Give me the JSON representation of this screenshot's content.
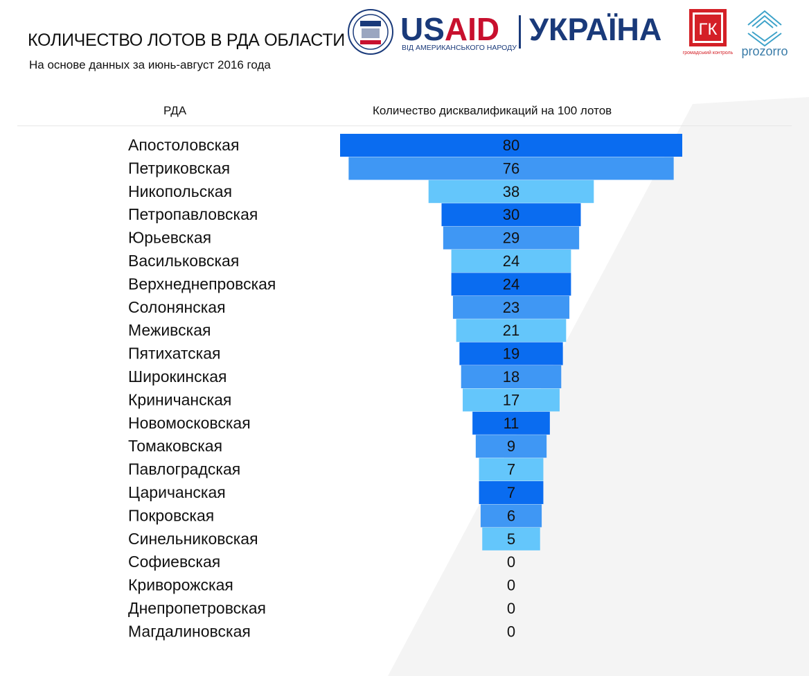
{
  "header": {
    "title": "КОЛИЧЕСТВО ЛОТОВ В РДА ОБЛАСТИ",
    "subtitle": "На основе данных за июнь-август 2016 года",
    "col_rda": "РДА",
    "col_value": "Количество дисквалификаций на 100 лотов"
  },
  "logos": {
    "usaid": "USAID",
    "usaid_sub": "ВІД АМЕРИКАНСЬКОГО НАРОДУ",
    "ukraine": "УКРАЇНА",
    "gk": "ГК",
    "gk_sub": "громадський контроль",
    "prozorro": "prozorro"
  },
  "colors": {
    "dark": "#0a6cf0",
    "mid": "#3f97f4",
    "light": "#64c6fb"
  },
  "chart_data": {
    "type": "bar",
    "orientation": "horizontal-centered",
    "categories": [
      "Апостоловская",
      "Петриковская",
      "Никопольская",
      "Петропавловская",
      "Юрьевская",
      "Васильковская",
      "Верхнеднепровская",
      "Солонянская",
      "Меживская",
      "Пятихатская",
      "Широкинская",
      "Криничанская",
      "Новомосковская",
      "Томаковская",
      "Павлоградская",
      "Царичанская",
      "Покровская",
      "Синельниковская",
      "Софиевская",
      "Криворожская",
      "Днепропетровская",
      "Магдалиновская"
    ],
    "values": [
      80,
      76,
      38,
      30,
      29,
      24,
      24,
      23,
      21,
      19,
      18,
      17,
      11,
      9,
      7,
      7,
      6,
      5,
      0,
      0,
      0,
      0
    ],
    "bar_shades": [
      "dark",
      "mid",
      "light",
      "dark",
      "mid",
      "light",
      "dark",
      "mid",
      "light",
      "dark",
      "mid",
      "light",
      "dark",
      "mid",
      "light",
      "dark",
      "mid",
      "light",
      "none",
      "none",
      "none",
      "none"
    ],
    "title": "КОЛИЧЕСТВО ЛОТОВ В РДА ОБЛАСТИ",
    "xlabel": "Количество дисквалификаций на 100 лотов",
    "ylabel": "РДА",
    "grid": false,
    "legend": "none"
  }
}
